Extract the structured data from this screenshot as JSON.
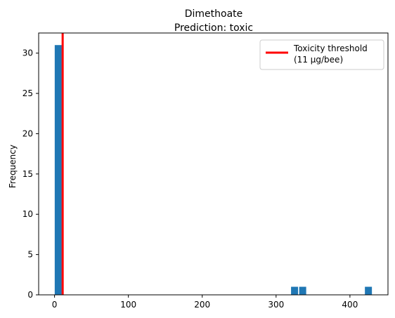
{
  "chart_data": {
    "type": "bar",
    "title": "Dimethoate",
    "subtitle": "Prediction: toxic",
    "xlabel": "",
    "ylabel": "Frequency",
    "xlim": [
      -21.5,
      451.5
    ],
    "ylim": [
      0,
      32.5
    ],
    "xticks": [
      0,
      100,
      200,
      300,
      400
    ],
    "yticks": [
      0,
      5,
      10,
      15,
      20,
      25,
      30
    ],
    "bin_width": 9.5,
    "bars": [
      {
        "x": 5,
        "value": 31
      },
      {
        "x": 325,
        "value": 1
      },
      {
        "x": 336,
        "value": 1
      },
      {
        "x": 425,
        "value": 1
      }
    ],
    "threshold": {
      "value": 11,
      "legend_line1": "Toxicity threshold",
      "legend_line2": "(11 μg/bee)",
      "color": "#ff0000"
    },
    "bar_color": "#1f77b4",
    "legend_position": "top-right",
    "grid": false
  }
}
